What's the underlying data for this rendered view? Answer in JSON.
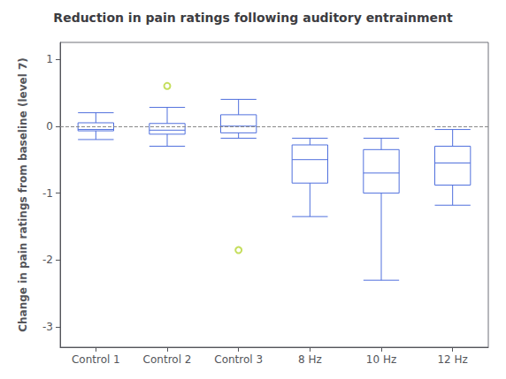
{
  "chart_data": {
    "type": "boxplot",
    "title": "Reduction in pain ratings following auditory entrainment",
    "ylabel": "Change in pain ratings from baseline (level 7)",
    "categories": [
      "Control 1",
      "Control 2",
      "Control 3",
      "8 Hz",
      "10 Hz",
      "12 Hz"
    ],
    "boxes": [
      {
        "q1": -0.07,
        "median": -0.05,
        "q3": 0.05,
        "whislo": -0.2,
        "whishi": 0.2,
        "fliers": []
      },
      {
        "q1": -0.12,
        "median": -0.06,
        "q3": 0.04,
        "whislo": -0.3,
        "whishi": 0.28,
        "fliers": [
          0.6
        ]
      },
      {
        "q1": -0.1,
        "median": 0.0,
        "q3": 0.17,
        "whislo": -0.18,
        "whishi": 0.4,
        "fliers": [
          -1.85
        ]
      },
      {
        "q1": -0.85,
        "median": -0.5,
        "q3": -0.28,
        "whislo": -1.35,
        "whishi": -0.18,
        "fliers": []
      },
      {
        "q1": -1.0,
        "median": -0.7,
        "q3": -0.35,
        "whislo": -2.3,
        "whishi": -0.18,
        "fliers": []
      },
      {
        "q1": -0.88,
        "median": -0.55,
        "q3": -0.3,
        "whislo": -1.18,
        "whishi": -0.05,
        "fliers": []
      }
    ],
    "reference_line_y": 0,
    "ylim": [
      -3.3,
      1.25
    ],
    "yticks": [
      -3,
      -2,
      -1,
      0,
      1
    ],
    "grid": false
  }
}
